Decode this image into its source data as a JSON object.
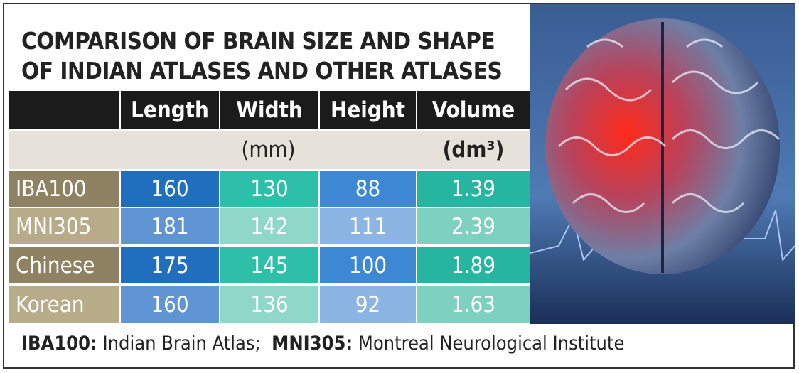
{
  "title": [
    "COMPARISON OF BRAIN SIZE AND SHAPE",
    "OF INDIAN ATLASES AND OTHER ATLASES"
  ],
  "table": {
    "header": [
      "Length",
      "Width",
      "Height",
      "Volume"
    ],
    "units": [
      "(mm)",
      "(dm³)"
    ],
    "rows": [
      [
        "IBA100",
        160,
        130,
        88,
        1.39
      ],
      [
        "MNI305",
        181,
        142,
        111,
        2.39
      ],
      [
        "Chinese",
        175,
        145,
        100,
        1.89
      ],
      [
        "Korean",
        160,
        136,
        92,
        1.63
      ]
    ]
  },
  "footnote": [
    {
      "term": "IBA100:",
      "text": "Indian Brain Atlas;"
    },
    {
      "term": "MNI305:",
      "text": "Montreal Neurological Institute"
    }
  ]
}
